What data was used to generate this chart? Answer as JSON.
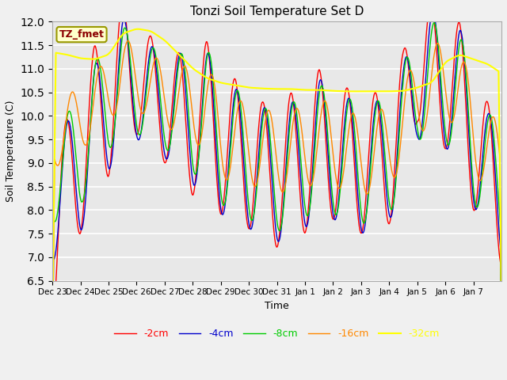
{
  "title": "Tonzi Soil Temperature Set D",
  "xlabel": "Time",
  "ylabel": "Soil Temperature (C)",
  "ylim": [
    6.5,
    12.0
  ],
  "yticks": [
    6.5,
    7.0,
    7.5,
    8.0,
    8.5,
    9.0,
    9.5,
    10.0,
    10.5,
    11.0,
    11.5,
    12.0
  ],
  "fig_facecolor": "#f0f0f0",
  "plot_bg_color": "#e8e8e8",
  "legend_label": "TZ_fmet",
  "legend_text_color": "#8b0000",
  "series_colors": {
    "-2cm": "#ff0000",
    "-4cm": "#0000cc",
    "-8cm": "#00cc00",
    "-16cm": "#ff8800",
    "-32cm": "#ffff00"
  },
  "tick_labels": [
    "Dec 23",
    "Dec 24",
    "Dec 25",
    "Dec 26",
    "Dec 27",
    "Dec 28",
    "Dec 29",
    "Dec 30",
    "Dec 31",
    "Jan 1",
    "Jan 2",
    "Jan 3",
    "Jan 4",
    "Jan 5",
    "Jan 6",
    "Jan 7"
  ]
}
